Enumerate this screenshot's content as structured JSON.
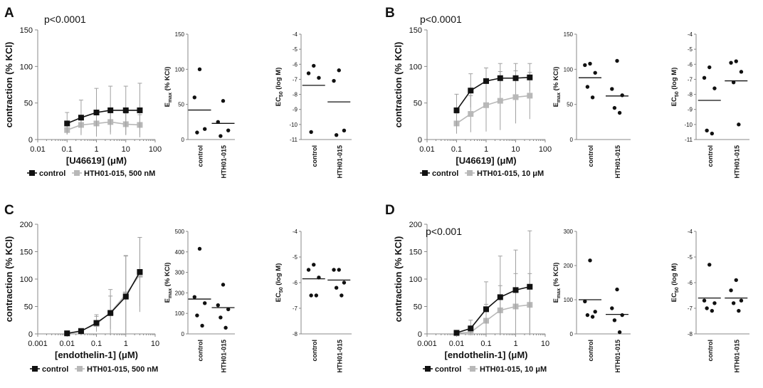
{
  "chart_data": [
    {
      "panel": "A",
      "type": "line",
      "pvalue": "p<0.0001",
      "ylabel": "contraction (% KCl)",
      "xlabel": "[U46619] (μM)",
      "xscale": "log",
      "xlim": [
        0.01,
        100
      ],
      "xticks": [
        "0.01",
        "0.1",
        "1",
        "10",
        "100"
      ],
      "ylim": [
        0,
        150
      ],
      "yticks": [
        "0",
        "50",
        "100",
        "150"
      ],
      "x": [
        0.1,
        0.3,
        1,
        3,
        10,
        30
      ],
      "series": [
        {
          "name": "control",
          "color": "#111111",
          "values": [
            22,
            30,
            37,
            40,
            40,
            40
          ],
          "errors": [
            15,
            24,
            33,
            33,
            33,
            37
          ]
        },
        {
          "name": "HTH01-015, 500 nM",
          "color": "#b8b8b8",
          "values": [
            13,
            20,
            22,
            24,
            21,
            20
          ],
          "errors": [
            6,
            12,
            13,
            14,
            15,
            14
          ]
        }
      ],
      "legend": [
        "control",
        "HTH01-015, 500 nM"
      ]
    },
    {
      "panel": "A",
      "type": "scatter",
      "ylabel_base": "E",
      "ylabel_sub": "max",
      "ylabel_rest": "(% KCl)",
      "ylim": [
        0,
        150
      ],
      "yticks": [
        "0",
        "50",
        "100",
        "150"
      ],
      "categories": [
        "control",
        "HTH01-015"
      ],
      "points": [
        [
          100,
          60,
          15,
          10
        ],
        [
          55,
          25,
          13,
          5
        ]
      ],
      "means": [
        42,
        23
      ]
    },
    {
      "panel": "A",
      "type": "scatter",
      "ylabel_base": "EC",
      "ylabel_sub": "50",
      "ylabel_rest": "(log M)",
      "ylim": [
        -11,
        -4
      ],
      "yticks": [
        "-4",
        "-5",
        "-6",
        "-7",
        "-8",
        "-9",
        "-10",
        "-11"
      ],
      "categories": [
        "control",
        "HTH01-015"
      ],
      "points": [
        [
          -6.1,
          -6.6,
          -6.9,
          -10.5
        ],
        [
          -6.4,
          -7.1,
          -10.4,
          -10.7
        ]
      ],
      "means": [
        -7.4,
        -8.5
      ]
    },
    {
      "panel": "B",
      "type": "line",
      "pvalue": "p<0.0001",
      "ylabel": "contraction (% KCl)",
      "xlabel": "[U46619] (μM)",
      "xscale": "log",
      "xlim": [
        0.01,
        100
      ],
      "xticks": [
        "0.01",
        "0.1",
        "1",
        "10",
        "100"
      ],
      "ylim": [
        0,
        150
      ],
      "yticks": [
        "0",
        "50",
        "100",
        "150"
      ],
      "x": [
        0.1,
        0.3,
        1,
        3,
        10,
        30
      ],
      "series": [
        {
          "name": "control",
          "color": "#111111",
          "values": [
            40,
            67,
            80,
            84,
            84,
            85
          ],
          "errors": [
            22,
            23,
            18,
            20,
            20,
            19
          ]
        },
        {
          "name": "HTH01-015, 10 μM",
          "color": "#b8b8b8",
          "values": [
            22,
            35,
            47,
            53,
            58,
            60
          ],
          "errors": [
            14,
            25,
            36,
            40,
            36,
            32
          ]
        }
      ],
      "legend": [
        "control",
        "HTH01-015, 10 μM"
      ]
    },
    {
      "panel": "B",
      "type": "scatter",
      "ylabel_base": "E",
      "ylabel_sub": "max",
      "ylabel_rest": "(% KCl)",
      "ylim": [
        0,
        150
      ],
      "yticks": [
        "0",
        "50",
        "100",
        "150"
      ],
      "categories": [
        "control",
        "HTH01-015"
      ],
      "points": [
        [
          108,
          106,
          95,
          75,
          60
        ],
        [
          112,
          72,
          63,
          45,
          38
        ]
      ],
      "means": [
        88,
        62
      ]
    },
    {
      "panel": "B",
      "type": "scatter",
      "ylabel_base": "EC",
      "ylabel_sub": "50",
      "ylabel_rest": "(log M)",
      "ylim": [
        -11,
        -4
      ],
      "yticks": [
        "-4",
        "-5",
        "-6",
        "-7",
        "-8",
        "-9",
        "-10",
        "-11"
      ],
      "categories": [
        "control",
        "HTH01-015"
      ],
      "points": [
        [
          -6.2,
          -6.9,
          -7.6,
          -10.4,
          -10.6
        ],
        [
          -5.8,
          -5.9,
          -6.5,
          -7.2,
          -10.0
        ]
      ],
      "means": [
        -8.4,
        -7.1
      ]
    },
    {
      "panel": "C",
      "type": "line",
      "pvalue": "",
      "ylabel": "contraction (% KCl)",
      "xlabel": "[endothelin-1] (μM)",
      "xscale": "log",
      "xlim": [
        0.001,
        10
      ],
      "xticks": [
        "0.001",
        "0.01",
        "0.1",
        "1",
        "10"
      ],
      "ylim": [
        0,
        200
      ],
      "yticks": [
        "0",
        "50",
        "100",
        "150",
        "200"
      ],
      "x": [
        0.01,
        0.03,
        0.1,
        0.3,
        1,
        3
      ],
      "series": [
        {
          "name": "control",
          "color": "#111111",
          "values": [
            1,
            5,
            20,
            38,
            68,
            113
          ],
          "errors": [
            1,
            3,
            15,
            43,
            75,
            63
          ]
        },
        {
          "name": "HTH01-015, 500 nM",
          "color": "#b8b8b8",
          "values": [
            1,
            6,
            18,
            39,
            72,
            108
          ],
          "errors": [
            1,
            4,
            14,
            30,
            70,
            68
          ]
        }
      ],
      "legend": [
        "control",
        "HTH01-015, 500 nM"
      ]
    },
    {
      "panel": "C",
      "type": "scatter",
      "ylabel_base": "E",
      "ylabel_sub": "max",
      "ylabel_rest": "(% KCl)",
      "ylim": [
        0,
        500
      ],
      "yticks": [
        "0",
        "100",
        "200",
        "300",
        "400",
        "500"
      ],
      "categories": [
        "control",
        "HTH01-015"
      ],
      "points": [
        [
          415,
          180,
          150,
          90,
          40
        ],
        [
          240,
          140,
          120,
          80,
          30
        ]
      ],
      "means": [
        170,
        128
      ]
    },
    {
      "panel": "C",
      "type": "scatter",
      "ylabel_base": "EC",
      "ylabel_sub": "50",
      "ylabel_rest": "(log M)",
      "ylim": [
        -8,
        -4
      ],
      "yticks": [
        "-4",
        "-5",
        "-6",
        "-7",
        "-8"
      ],
      "categories": [
        "control",
        "HTH01-015"
      ],
      "points": [
        [
          -5.3,
          -5.5,
          -5.8,
          -6.5,
          -6.5
        ],
        [
          -5.5,
          -5.5,
          -6.0,
          -6.2,
          -6.5
        ]
      ],
      "means": [
        -5.85,
        -5.9
      ]
    },
    {
      "panel": "D",
      "type": "line",
      "pvalue": "p<0.001",
      "ylabel": "contraction (% KCl)",
      "xlabel": "[endothelin-1] (μM)",
      "xscale": "log",
      "xlim": [
        0.001,
        10
      ],
      "xticks": [
        "0.001",
        "0.01",
        "0.1",
        "1",
        "10"
      ],
      "ylim": [
        0,
        200
      ],
      "yticks": [
        "0",
        "50",
        "100",
        "150",
        "200"
      ],
      "x": [
        0.01,
        0.03,
        0.1,
        0.3,
        1,
        3
      ],
      "series": [
        {
          "name": "control",
          "color": "#111111",
          "values": [
            2,
            10,
            45,
            67,
            80,
            86
          ],
          "errors": [
            4,
            15,
            50,
            75,
            73,
            102
          ]
        },
        {
          "name": "HTH01-015, 10 μM",
          "color": "#b8b8b8",
          "values": [
            1,
            3,
            24,
            43,
            50,
            53
          ],
          "errors": [
            2,
            5,
            30,
            45,
            60,
            57
          ]
        }
      ],
      "legend": [
        "control",
        "HTH01-015, 10 μM"
      ]
    },
    {
      "panel": "D",
      "type": "scatter",
      "ylabel_base": "E",
      "ylabel_sub": "max",
      "ylabel_rest": "(% KCl)",
      "ylim": [
        0,
        300
      ],
      "yticks": [
        "0",
        "100",
        "200",
        "300"
      ],
      "categories": [
        "control",
        "HTH01-015"
      ],
      "points": [
        [
          215,
          95,
          65,
          55,
          50
        ],
        [
          130,
          75,
          55,
          40,
          5
        ]
      ],
      "means": [
        100,
        57
      ]
    },
    {
      "panel": "D",
      "type": "scatter",
      "ylabel_base": "EC",
      "ylabel_sub": "50",
      "ylabel_rest": "(log M)",
      "ylim": [
        -8,
        -4
      ],
      "yticks": [
        "-4",
        "-5",
        "-6",
        "-7",
        "-8"
      ],
      "categories": [
        "control",
        "HTH01-015"
      ],
      "points": [
        [
          -5.3,
          -6.7,
          -6.8,
          -7.0,
          -7.1
        ],
        [
          -5.9,
          -6.3,
          -6.7,
          -6.8,
          -7.1
        ]
      ],
      "means": [
        -6.6,
        -6.6
      ]
    }
  ]
}
